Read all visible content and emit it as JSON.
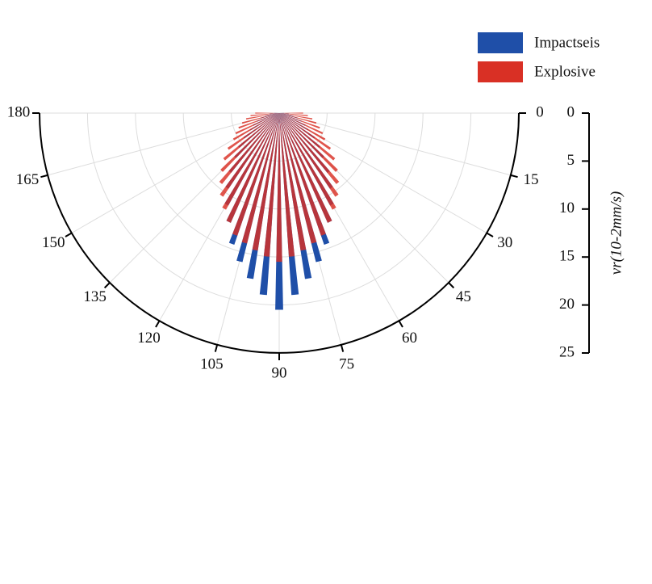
{
  "chart_data": {
    "type": "polar_bar",
    "x": [
      0,
      5,
      10,
      15,
      20,
      25,
      30,
      35,
      40,
      45,
      50,
      55,
      60,
      65,
      70,
      75,
      80,
      85,
      90,
      95,
      100,
      105,
      110,
      115,
      120,
      125,
      130,
      135,
      140,
      145,
      150,
      155,
      160,
      165,
      170,
      175,
      180
    ],
    "series": [
      {
        "name": "Impactseis",
        "color": "#1f4fa8",
        "values": [
          0.5,
          1,
          1.5,
          2,
          2.5,
          3,
          3.5,
          4.5,
          5.5,
          6.5,
          8,
          9.5,
          11,
          12.5,
          14.5,
          16,
          17.5,
          19,
          20.5,
          19,
          17.5,
          16,
          14.5,
          12.5,
          11,
          9.5,
          8,
          6.5,
          5.5,
          4.5,
          3.5,
          3,
          2.5,
          2,
          1.5,
          1,
          0.5
        ]
      },
      {
        "name": "Explosive",
        "color": "#d93025",
        "values": [
          2.5,
          3,
          3.5,
          4,
          4.5,
          5,
          5.5,
          6.5,
          7.5,
          8.5,
          9.5,
          10.5,
          11.5,
          12.5,
          13.5,
          14,
          14.5,
          15,
          15.5,
          15,
          14.5,
          14,
          13.5,
          12.5,
          11.5,
          10.5,
          9.5,
          8.5,
          7.5,
          6.5,
          5.5,
          5,
          4.5,
          4,
          3.5,
          3,
          2.5
        ]
      }
    ],
    "xlim": [
      0,
      180
    ],
    "xticks": [
      0,
      15,
      30,
      45,
      60,
      75,
      90,
      105,
      120,
      135,
      150,
      165,
      180
    ],
    "ylim": [
      0,
      25
    ],
    "yticks": [
      0,
      5,
      10,
      15,
      20,
      25
    ],
    "y_label": "vr(10-2mm/s)",
    "grid": true,
    "legend": "upper right"
  }
}
